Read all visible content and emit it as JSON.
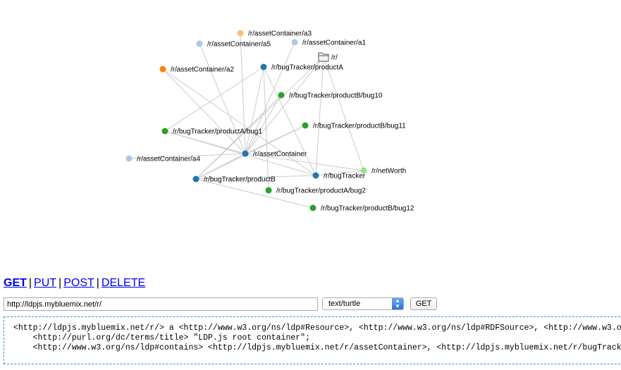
{
  "graph": {
    "nodes": [
      {
        "id": "a3",
        "label": "/r/assetContainer/a3",
        "color": "#ffbb78",
        "icon": "node-dot-icon"
      },
      {
        "id": "a5",
        "label": "/r/assetContainer/a5",
        "color": "#aec7e8",
        "icon": "node-dot-icon"
      },
      {
        "id": "a1",
        "label": "/r/assetContainer/a1",
        "color": "#aec7e8",
        "icon": "node-dot-icon"
      },
      {
        "id": "root",
        "label": "/r/",
        "color": "#555555",
        "icon": "folder-icon"
      },
      {
        "id": "a2",
        "label": "/r/assetContainer/a2",
        "color": "#ff7f0e",
        "icon": "node-dot-icon"
      },
      {
        "id": "productA",
        "label": "/r/bugTracker/productA",
        "color": "#1f77b4",
        "icon": "node-dot-icon"
      },
      {
        "id": "bug10",
        "label": "/r/bugTracker/productB/bug10",
        "color": "#2ca02c",
        "icon": "node-dot-icon"
      },
      {
        "id": "bug11",
        "label": "/r/bugTracker/productB/bug11",
        "color": "#2ca02c",
        "icon": "node-dot-icon"
      },
      {
        "id": "bug1",
        "label": "/r/bugTracker/productA/bug1",
        "color": "#2ca02c",
        "icon": "node-dot-icon"
      },
      {
        "id": "assetContainer",
        "label": "/r/assetContainer",
        "color": "#1f77b4",
        "icon": "node-dot-icon"
      },
      {
        "id": "a4",
        "label": "/r/assetContainer/a4",
        "color": "#aec7e8",
        "icon": "node-dot-icon"
      },
      {
        "id": "netWorth",
        "label": "/r/netWorth",
        "color": "#98df8a",
        "icon": "node-dot-icon"
      },
      {
        "id": "bugTracker",
        "label": "/r/bugTracker",
        "color": "#1f77b4",
        "icon": "node-dot-icon"
      },
      {
        "id": "productB",
        "label": "/r/bugTracker/productB",
        "color": "#1f77b4",
        "icon": "node-dot-icon"
      },
      {
        "id": "bug2",
        "label": "/r/bugTracker/productA/bug2",
        "color": "#2ca02c",
        "icon": "node-dot-icon"
      },
      {
        "id": "bug12",
        "label": "/r/bugTracker/productB/bug12",
        "color": "#2ca02c",
        "icon": "node-dot-icon"
      }
    ],
    "edges": [
      [
        "assetContainer",
        "a3"
      ],
      [
        "assetContainer",
        "a5"
      ],
      [
        "assetContainer",
        "a1"
      ],
      [
        "assetContainer",
        "a2"
      ],
      [
        "assetContainer",
        "a4"
      ],
      [
        "assetContainer",
        "root"
      ],
      [
        "assetContainer",
        "productA"
      ],
      [
        "assetContainer",
        "bug1"
      ],
      [
        "assetContainer",
        "bug10"
      ],
      [
        "assetContainer",
        "bug11"
      ],
      [
        "assetContainer",
        "productB"
      ],
      [
        "assetContainer",
        "netWorth"
      ],
      [
        "root",
        "bugTracker"
      ],
      [
        "root",
        "netWorth"
      ],
      [
        "root",
        "productB"
      ],
      [
        "productA",
        "bug1"
      ],
      [
        "productA",
        "bug2"
      ],
      [
        "productA",
        "bugTracker"
      ],
      [
        "a2",
        "bugTracker"
      ],
      [
        "bugTracker",
        "productB"
      ],
      [
        "bugTracker",
        "netWorth"
      ],
      [
        "productB",
        "bug12"
      ],
      [
        "productB",
        "bug10"
      ],
      [
        "productB",
        "bug11"
      ],
      [
        "bug1",
        "bugTracker"
      ]
    ]
  },
  "methods": {
    "get": "GET",
    "put": "PUT",
    "post": "POST",
    "delete": "DELETE",
    "separator": "|",
    "active": "get"
  },
  "request": {
    "url": "http://ldpjs.mybluemix.net/r/",
    "mime_type": "text/turtle",
    "submit_label": "GET"
  },
  "response": {
    "lines": [
      "<http://ldpjs.mybluemix.net/r/> a <http://www.w3.org/ns/ldp#Resource>, <http://www.w3.org/ns/ldp#RDFSource>, <http://www.w3.org/ns/ldp#BasicContainer>;",
      "    <http://purl.org/dc/terms/title> \"LDP.js root container\";",
      "    <http://www.w3.org/ns/ldp#contains> <http://ldpjs.mybluemix.net/r/assetContainer>, <http://ldpjs.mybluemix.net/r/bugTracker>, <http://ldpjs.mybluemix.net/r/netWorth>."
    ]
  }
}
